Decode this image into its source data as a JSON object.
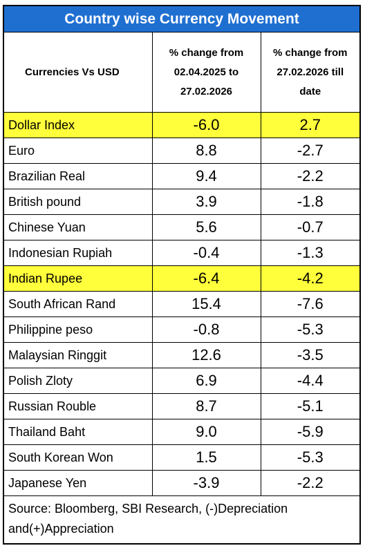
{
  "title": "Country wise Currency Movement",
  "headers": {
    "col1": "Currencies  Vs USD",
    "col2_lines": [
      "% change  from",
      "02.04.2025 to",
      "27.02.2026"
    ],
    "col3_lines": [
      "% change  from",
      "27.02.2026 till",
      "date"
    ]
  },
  "rows": [
    {
      "name": "Dollar Index",
      "a": "-6.0",
      "b": "2.7"
    },
    {
      "name": "Euro",
      "a": "8.8",
      "b": "-2.7"
    },
    {
      "name": "Brazilian Real",
      "a": "9.4",
      "b": "-2.2"
    },
    {
      "name": "British pound",
      "a": "3.9",
      "b": "-1.8"
    },
    {
      "name": "Chinese Yuan",
      "a": "5.6",
      "b": "-0.7"
    },
    {
      "name": "Indonesian Rupiah",
      "a": "-0.4",
      "b": "-1.3"
    },
    {
      "name": "Indian Rupee",
      "a": "-6.4",
      "b": "-4.2"
    },
    {
      "name": "South African Rand",
      "a": "15.4",
      "b": "-7.6"
    },
    {
      "name": "Philippine peso",
      "a": "-0.8",
      "b": "-5.3"
    },
    {
      "name": "Malaysian Ringgit",
      "a": "12.6",
      "b": "-3.5"
    },
    {
      "name": "Polish Zloty",
      "a": "6.9",
      "b": "-4.4"
    },
    {
      "name": "Russian Rouble",
      "a": "8.7",
      "b": "-5.1"
    },
    {
      "name": "Thailand Baht",
      "a": "9.0",
      "b": "-5.9"
    },
    {
      "name": "South Korean Won",
      "a": "1.5",
      "b": "-5.3"
    },
    {
      "name": "Japanese Yen",
      "a": "-3.9",
      "b": "-2.2"
    }
  ],
  "highlight_color": "#ffff3b",
  "title_bg_color": "#1f6fd1",
  "source_lines": [
    "Source: Bloomberg, SBI Research, (-)Depreciation",
    "and(+)Appreciation"
  ]
}
